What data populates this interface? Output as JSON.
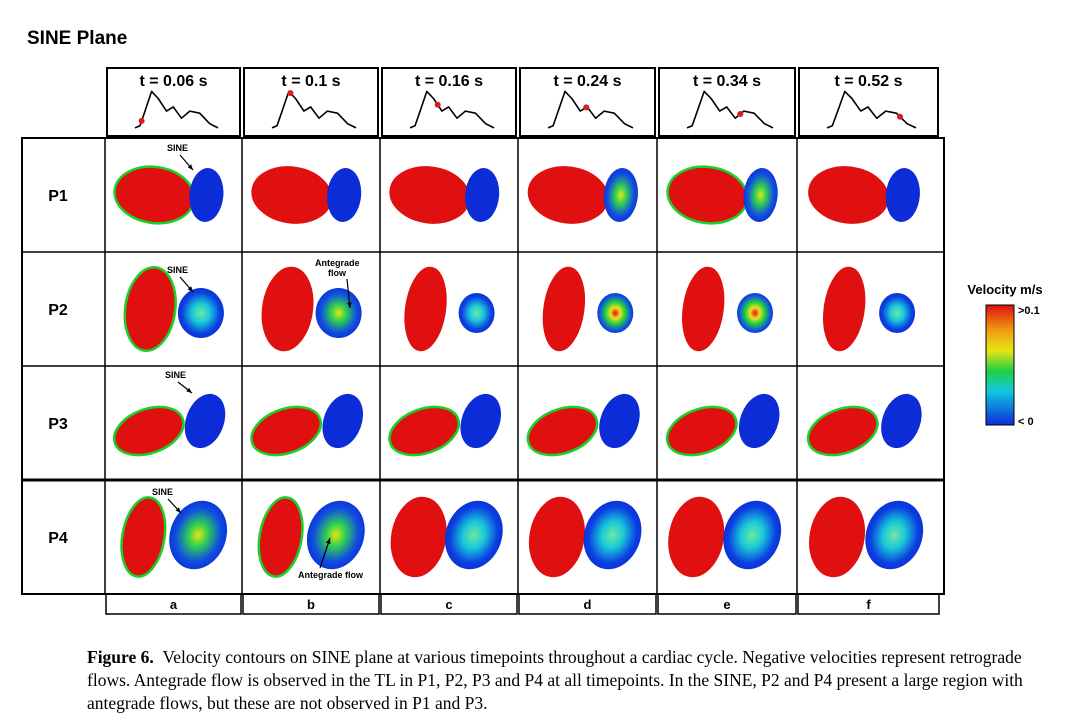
{
  "title": "SINE Plane",
  "times": [
    "t = 0.06 s",
    "t = 0.1 s",
    "t = 0.16 s",
    "t = 0.24 s",
    "t = 0.34 s",
    "t = 0.52 s"
  ],
  "rows": [
    "P1",
    "P2",
    "P3",
    "P4"
  ],
  "columns": [
    "a",
    "b",
    "c",
    "d",
    "e",
    "f"
  ],
  "annotations": {
    "sine": "SINE",
    "antegrade_line1": "Antegrade",
    "antegrade_line2": "flow",
    "antegrade_flow": "Antegrade flow"
  },
  "colorbar": {
    "title": "Velocity m/s",
    "max_label": ">0.1",
    "min_label": "< 0"
  },
  "colors": {
    "red": "#e01010",
    "blue": "#0b2cd6",
    "green": "#19d12a",
    "yellow": "#e8e416",
    "marker": "#e0191a"
  },
  "caption": {
    "label": "Figure 6.",
    "text": "Velocity contours on SINE plane at various timepoints throughout a cardiac cycle. Negative velocities represent retrograde flows. Antegrade flow is observed in the TL in P1, P2, P3 and P4 at all timepoints. In the SINE, P2 and P4 present a large region with antegrade flows, but these are not observed in P1 and P3."
  }
}
